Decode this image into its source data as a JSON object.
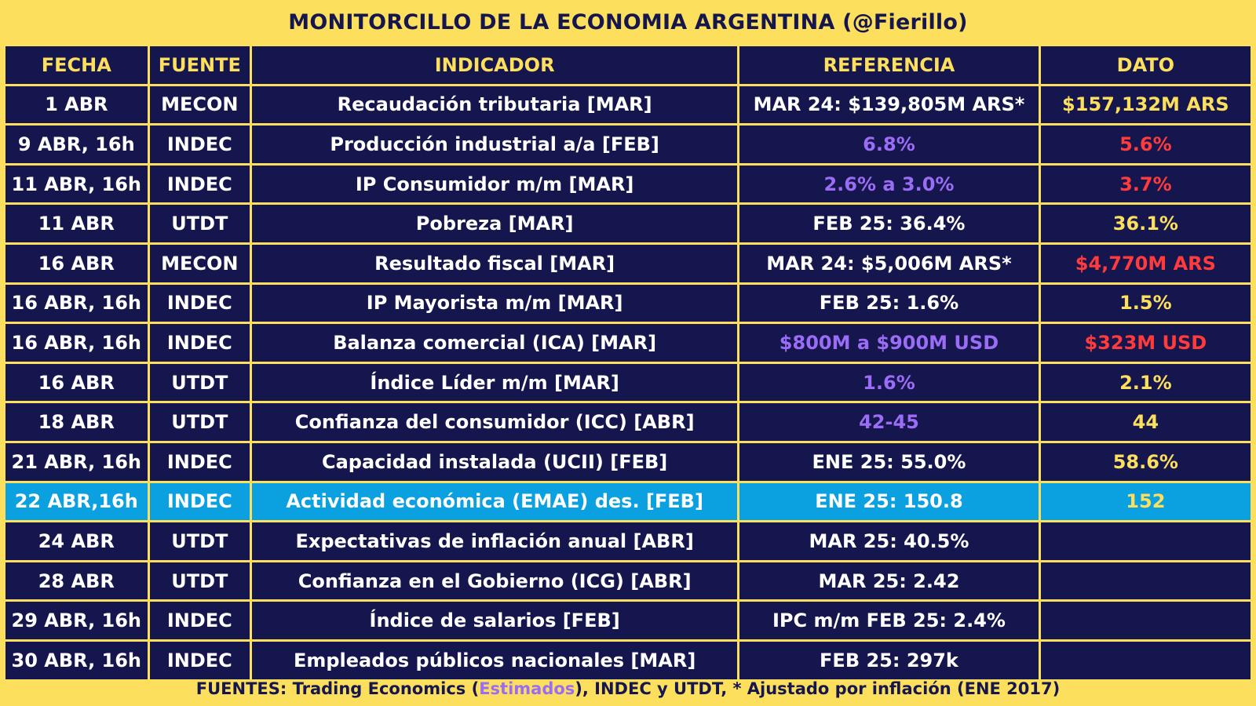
{
  "title": "MONITORCILLO DE LA ECONOMIA ARGENTINA (@Fierillo)",
  "headers": [
    "FECHA",
    "FUENTE",
    "INDICADOR",
    "REFERENCIA",
    "DATO"
  ],
  "colors": {
    "background": "#fddf5e",
    "cell": "#16164e",
    "highlight_row": "#0ba0e0",
    "estimate": "#9b6cf5",
    "negative": "#ff3b3b",
    "positive": "#fddf5e"
  },
  "rows": [
    {
      "fecha": "1 ABR",
      "fuente": "MECON",
      "indicador": "Recaudación tributaria [MAR]",
      "referencia": "MAR 24: $139,805M ARS*",
      "ref_type": "normal",
      "dato": "$157,132M ARS",
      "dato_type": "positive"
    },
    {
      "fecha": "9 ABR, 16h",
      "fuente": "INDEC",
      "indicador": "Producción industrial a/a [FEB]",
      "referencia": "6.8%",
      "ref_type": "estimate",
      "dato": "5.6%",
      "dato_type": "negative"
    },
    {
      "fecha": "11 ABR, 16h",
      "fuente": "INDEC",
      "indicador": "IP Consumidor m/m [MAR]",
      "referencia": "2.6% a 3.0%",
      "ref_type": "estimate",
      "dato": "3.7%",
      "dato_type": "negative"
    },
    {
      "fecha": "11 ABR",
      "fuente": "UTDT",
      "indicador": "Pobreza [MAR]",
      "referencia": "FEB 25: 36.4%",
      "ref_type": "normal",
      "dato": "36.1%",
      "dato_type": "positive"
    },
    {
      "fecha": "16 ABR",
      "fuente": "MECON",
      "indicador": "Resultado fiscal [MAR]",
      "referencia": "MAR 24: $5,006M ARS*",
      "ref_type": "normal",
      "dato": "$4,770M ARS",
      "dato_type": "negative"
    },
    {
      "fecha": "16 ABR, 16h",
      "fuente": "INDEC",
      "indicador": "IP Mayorista m/m [MAR]",
      "referencia": "FEB 25: 1.6%",
      "ref_type": "normal",
      "dato": "1.5%",
      "dato_type": "positive"
    },
    {
      "fecha": "16 ABR, 16h",
      "fuente": "INDEC",
      "indicador": "Balanza comercial (ICA) [MAR]",
      "referencia": "$800M a $900M USD",
      "ref_type": "estimate",
      "dato": "$323M USD",
      "dato_type": "negative"
    },
    {
      "fecha": "16 ABR",
      "fuente": "UTDT",
      "indicador": "Índice Líder m/m [MAR]",
      "referencia": "1.6%",
      "ref_type": "estimate",
      "dato": "2.1%",
      "dato_type": "positive"
    },
    {
      "fecha": "18 ABR",
      "fuente": "UTDT",
      "indicador": "Confianza del consumidor (ICC) [ABR]",
      "referencia": "42-45",
      "ref_type": "estimate",
      "dato": "44",
      "dato_type": "positive"
    },
    {
      "fecha": "21 ABR, 16h",
      "fuente": "INDEC",
      "indicador": "Capacidad instalada (UCII) [FEB]",
      "referencia": "ENE 25: 55.0%",
      "ref_type": "normal",
      "dato": "58.6%",
      "dato_type": "positive"
    },
    {
      "fecha": "22 ABR,16h",
      "fuente": "INDEC",
      "indicador": "Actividad económica (EMAE) des. [FEB]",
      "referencia": "ENE 25: 150.8",
      "ref_type": "normal",
      "dato": "152",
      "dato_type": "positive",
      "highlight": true
    },
    {
      "fecha": "24 ABR",
      "fuente": "UTDT",
      "indicador": "Expectativas de inflación anual [ABR]",
      "referencia": "MAR 25: 40.5%",
      "ref_type": "normal",
      "dato": "",
      "dato_type": "none"
    },
    {
      "fecha": "28 ABR",
      "fuente": "UTDT",
      "indicador": "Confianza en el Gobierno (ICG) [ABR]",
      "referencia": "MAR 25: 2.42",
      "ref_type": "normal",
      "dato": "",
      "dato_type": "none"
    },
    {
      "fecha": "29 ABR, 16h",
      "fuente": "INDEC",
      "indicador": "Índice de salarios [FEB]",
      "referencia": "IPC m/m FEB 25: 2.4%",
      "ref_type": "normal",
      "dato": "",
      "dato_type": "none"
    },
    {
      "fecha": "30 ABR, 16h",
      "fuente": "INDEC",
      "indicador": "Empleados públicos nacionales [MAR]",
      "referencia": "FEB 25: 297k",
      "ref_type": "normal",
      "dato": "",
      "dato_type": "none"
    }
  ],
  "footer": {
    "prefix": "FUENTES: Trading Economics (",
    "estimates_word": "Estimados",
    "suffix": "), INDEC y UTDT, * Ajustado por inflación (ENE 2017)"
  }
}
